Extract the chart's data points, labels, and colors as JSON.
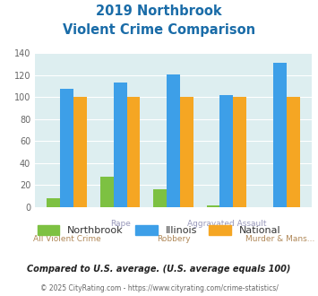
{
  "title_line1": "2019 Northbrook",
  "title_line2": "Violent Crime Comparison",
  "categories": [
    "All Violent Crime",
    "Rape",
    "Robbery",
    "Aggravated Assault",
    "Murder & Mans..."
  ],
  "northbrook": [
    8,
    28,
    16,
    2,
    0
  ],
  "illinois": [
    108,
    113,
    121,
    102,
    131
  ],
  "national": [
    100,
    100,
    100,
    100,
    100
  ],
  "color_northbrook": "#7dc142",
  "color_illinois": "#3d9fe8",
  "color_national": "#f5a623",
  "ylim": [
    0,
    140
  ],
  "yticks": [
    0,
    20,
    40,
    60,
    80,
    100,
    120,
    140
  ],
  "footnote": "Compared to U.S. average. (U.S. average equals 100)",
  "copyright": "© 2025 CityRating.com - https://www.cityrating.com/crime-statistics/",
  "bg_color": "#ddeef0",
  "title_color": "#1a6ca8",
  "footnote_color": "#222222",
  "copyright_color": "#3d9fe8",
  "label_color_bottom": "#b08050",
  "label_color_top": "#9090b0"
}
